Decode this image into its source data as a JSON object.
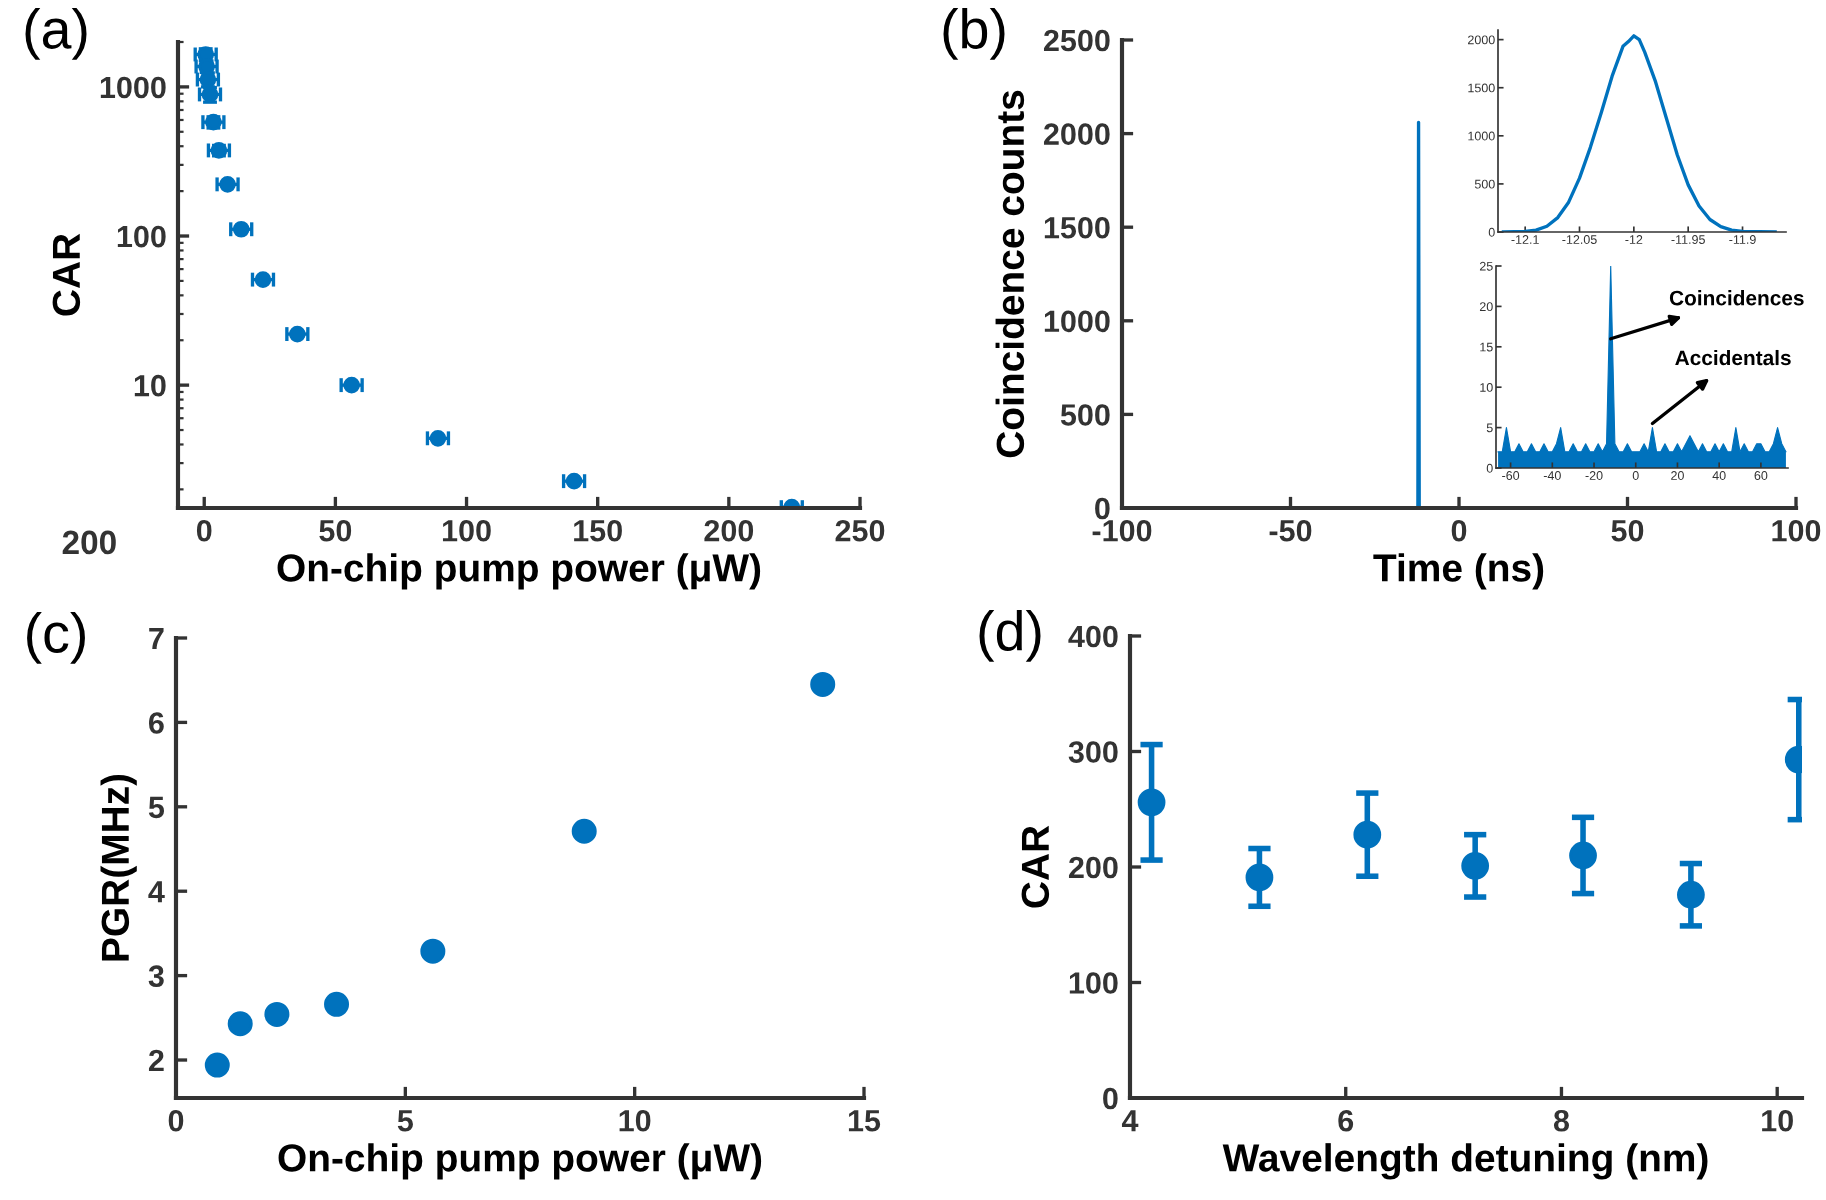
{
  "chart_data": [
    {
      "type": "scatter",
      "title": "(a)",
      "xlabel": "On-chip pump power (μW)",
      "ylabel": "CAR",
      "log": "y",
      "marker": "circle",
      "x": [
        0.56,
        0.9,
        1.4,
        2.2,
        3.5,
        5.6,
        8.9,
        14.1,
        22.4,
        35.5,
        56.2,
        89.1,
        141,
        224
      ],
      "series": [
        {
          "color": "#0072bd",
          "values": [
            1650,
            1370,
            1120,
            890,
            580,
            375,
            222,
            111,
            51,
            22,
            10,
            4.4,
            2.27,
            1.52
          ],
          "errors": [
            150,
            120,
            120,
            100,
            50,
            30,
            null,
            null,
            null,
            null,
            null,
            null,
            null,
            null
          ],
          "xerrors": [
            4,
            4,
            4,
            4,
            4,
            4,
            4,
            4,
            4,
            4,
            4,
            4,
            4,
            4
          ]
        }
      ],
      "xlim": [
        -10,
        250
      ],
      "xticks": [
        0,
        50,
        100,
        150,
        200,
        250
      ],
      "ylim": [
        1.5,
        2000
      ],
      "yticks": [
        10,
        100,
        1000
      ],
      "annotations": [
        "200"
      ]
    },
    {
      "type": "line",
      "title": "(b)",
      "xlabel": "Time (ns)",
      "ylabel": "Coincidence counts",
      "x": [
        -100,
        -12.2,
        -12,
        -11.8,
        100
      ],
      "series": [
        {
          "color": "#0072bd",
          "values": [
            0,
            0,
            2060,
            0,
            0
          ]
        }
      ],
      "xlim": [
        -100,
        100
      ],
      "xticks": [
        -100,
        -50,
        0,
        50,
        100
      ],
      "ylim": [
        0,
        2500
      ],
      "yticks": [
        0,
        500,
        1000,
        1500,
        2000,
        2500
      ]
    },
    {
      "type": "line",
      "x": [
        -12.12,
        -12.1,
        -12.09,
        -12.08,
        -12.07,
        -12.06,
        -12.05,
        -12.04,
        -12.03,
        -12.02,
        -12.01,
        -12.005,
        -12.0,
        -11.995,
        -11.99,
        -11.98,
        -11.97,
        -11.96,
        -11.95,
        -11.94,
        -11.93,
        -11.92,
        -11.91,
        -11.9,
        -11.87
      ],
      "series": [
        {
          "color": "#0072bd",
          "values": [
            0,
            5,
            20,
            60,
            150,
            310,
            560,
            880,
            1240,
            1620,
            1930,
            1980,
            2040,
            2000,
            1870,
            1560,
            1180,
            800,
            490,
            270,
            130,
            55,
            20,
            5,
            0
          ]
        }
      ],
      "xlim": [
        -12.125,
        -11.86
      ],
      "xticks": [
        -12.1,
        -12.05,
        -12,
        -11.95,
        -11.9
      ],
      "ylim": [
        0,
        2100
      ],
      "yticks": [
        0,
        500,
        1000,
        1500,
        2000
      ]
    },
    {
      "type": "area",
      "x": [
        -66,
        -64,
        -62,
        -60,
        -58,
        -56,
        -54,
        -52,
        -50,
        -48,
        -46,
        -44,
        -42,
        -40,
        -38,
        -36,
        -34,
        -32,
        -30,
        -28,
        -26,
        -24,
        -22,
        -20,
        -18,
        -16,
        -14,
        -12,
        -10,
        -8,
        -6,
        -4,
        -2,
        0,
        2,
        4,
        6,
        8,
        10,
        12,
        14,
        16,
        18,
        20,
        22,
        24,
        26,
        28,
        30,
        32,
        34,
        36,
        38,
        40,
        42,
        44,
        46,
        48,
        50,
        52,
        54,
        56,
        58,
        60,
        62,
        64,
        66,
        68,
        70,
        72
      ],
      "series": [
        {
          "color": "#0072bd",
          "values": [
            2,
            2,
            5,
            2,
            2,
            3,
            2,
            2,
            3,
            2,
            2,
            3,
            2,
            2,
            3,
            5,
            2,
            2,
            3,
            2,
            2,
            3,
            2,
            2,
            3,
            2,
            3,
            25,
            3,
            2,
            2,
            3,
            2,
            2,
            2,
            3,
            2,
            5,
            2,
            2,
            3,
            2,
            2,
            3,
            2,
            3,
            4,
            3,
            2,
            3,
            2,
            2,
            3,
            2,
            3,
            2,
            2,
            5,
            2,
            3,
            2,
            2,
            3,
            3,
            2,
            2,
            3,
            5,
            3,
            2
          ]
        }
      ],
      "xlim": [
        -67,
        73
      ],
      "xticks": [
        -60,
        -40,
        -20,
        0,
        20,
        40,
        60
      ],
      "ylim": [
        0,
        25
      ],
      "yticks": [
        0,
        5,
        10,
        15,
        20,
        25
      ],
      "annotations": [
        {
          "text": "Coincidences",
          "x": -12,
          "y": 16
        },
        {
          "text": "Accidentals",
          "x": 8,
          "y": 5.5
        }
      ]
    },
    {
      "type": "scatter",
      "title": "(c)",
      "xlabel": "On-chip pump power (μW)",
      "ylabel": "PGR(MHz)",
      "marker": "circle",
      "x": [
        0.9,
        1.4,
        2.2,
        3.5,
        5.6,
        8.9,
        14.1
      ],
      "series": [
        {
          "color": "#0072bd",
          "values": [
            1.94,
            2.43,
            2.54,
            2.66,
            3.29,
            4.71,
            6.45
          ]
        }
      ],
      "xlim": [
        0,
        15
      ],
      "xticks": [
        0,
        5,
        10,
        15
      ],
      "ylim": [
        1.55,
        7
      ],
      "yticks": [
        2,
        3,
        4,
        5,
        6,
        7
      ]
    },
    {
      "type": "scatter",
      "title": "(d)",
      "xlabel": "Wavelength detuning (nm)",
      "ylabel": "CAR",
      "marker": "circle",
      "x": [
        4.2,
        5.2,
        6.2,
        7.2,
        8.2,
        9.2,
        10.2
      ],
      "series": [
        {
          "color": "#0072bd",
          "values": [
            256,
            191,
            228,
            201,
            210,
            176,
            293
          ],
          "errors": [
            50,
            25,
            36,
            27,
            33,
            27,
            52
          ]
        }
      ],
      "xlim": [
        4,
        10.23
      ],
      "xticks": [
        4,
        6,
        8,
        10
      ],
      "ylim": [
        0,
        400
      ],
      "yticks": [
        0,
        100,
        200,
        300,
        400
      ]
    }
  ]
}
